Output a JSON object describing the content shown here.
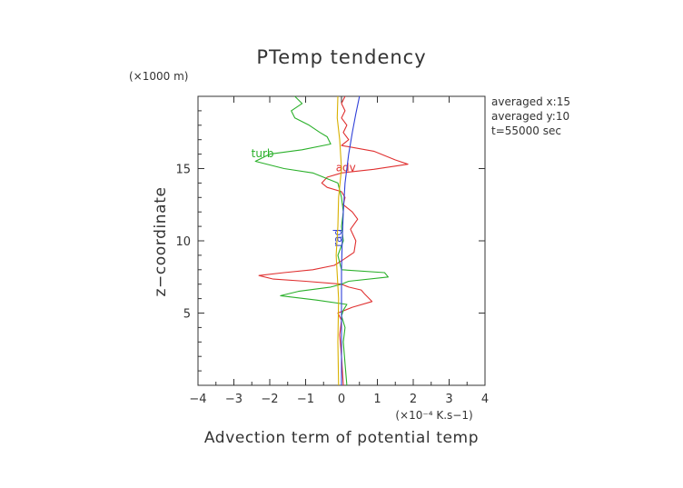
{
  "chart_data": {
    "type": "line",
    "title": "PTemp tendency",
    "xlabel": "Advection term of potential temp",
    "ylabel": "z−coordinate",
    "x_unit": "(×10⁻⁴ K.s−1)",
    "y_unit": "(×1000 m)",
    "xlim": [
      -4,
      4
    ],
    "ylim": [
      0,
      20
    ],
    "x_ticks": [
      -4,
      -3,
      -2,
      -1,
      0,
      1,
      2,
      3,
      4
    ],
    "x_tick_labels": [
      "−4",
      "−3",
      "−2",
      "−1",
      "0",
      "1",
      "2",
      "3",
      "4"
    ],
    "y_ticks": [
      5,
      10,
      15
    ],
    "y_tick_labels": [
      "5",
      "10",
      "15"
    ],
    "grid": false,
    "annotations": [
      "averaged  x:15",
      "averaged  y:10",
      "t=55000 sec"
    ],
    "series": [
      {
        "name": "adv",
        "color": "#e03030",
        "label_at": [
          0.12,
          14.8
        ],
        "points": [
          [
            0.05,
            0.0
          ],
          [
            0.0,
            2.0
          ],
          [
            -0.05,
            3.5
          ],
          [
            0.0,
            4.5
          ],
          [
            -0.1,
            5.0
          ],
          [
            0.3,
            5.4
          ],
          [
            0.85,
            5.8
          ],
          [
            0.65,
            6.3
          ],
          [
            0.55,
            6.6
          ],
          [
            0.2,
            6.8
          ],
          [
            0.0,
            7.0
          ],
          [
            -1.0,
            7.2
          ],
          [
            -1.9,
            7.35
          ],
          [
            -2.3,
            7.6
          ],
          [
            -1.6,
            7.8
          ],
          [
            -0.8,
            8.0
          ],
          [
            -0.2,
            8.3
          ],
          [
            0.05,
            8.7
          ],
          [
            0.35,
            9.2
          ],
          [
            0.4,
            10.0
          ],
          [
            0.25,
            10.8
          ],
          [
            0.45,
            11.5
          ],
          [
            0.3,
            12.0
          ],
          [
            0.05,
            12.5
          ],
          [
            0.1,
            13.0
          ],
          [
            0.0,
            13.4
          ],
          [
            -0.4,
            13.7
          ],
          [
            -0.55,
            14.0
          ],
          [
            -0.4,
            14.4
          ],
          [
            0.0,
            14.7
          ],
          [
            0.9,
            14.95
          ],
          [
            1.85,
            15.3
          ],
          [
            1.5,
            15.6
          ],
          [
            0.9,
            16.2
          ],
          [
            0.0,
            16.6
          ],
          [
            0.2,
            17.0
          ],
          [
            0.05,
            17.5
          ],
          [
            0.15,
            18.0
          ],
          [
            0.0,
            18.5
          ],
          [
            0.1,
            19.0
          ],
          [
            0.0,
            19.5
          ],
          [
            0.1,
            20.0
          ]
        ]
      },
      {
        "name": "turb",
        "color": "#2ab02a",
        "label_at": [
          -2.2,
          15.8
        ],
        "points": [
          [
            0.15,
            0.0
          ],
          [
            0.1,
            1.5
          ],
          [
            0.05,
            3.0
          ],
          [
            0.1,
            4.0
          ],
          [
            0.0,
            4.8
          ],
          [
            0.05,
            5.2
          ],
          [
            0.15,
            5.6
          ],
          [
            -0.7,
            5.9
          ],
          [
            -1.7,
            6.2
          ],
          [
            -1.2,
            6.5
          ],
          [
            -0.3,
            6.8
          ],
          [
            0.0,
            7.0
          ],
          [
            0.2,
            7.2
          ],
          [
            1.3,
            7.5
          ],
          [
            1.2,
            7.8
          ],
          [
            0.0,
            8.0
          ],
          [
            -0.1,
            9.0
          ],
          [
            0.05,
            10.0
          ],
          [
            0.0,
            11.0
          ],
          [
            0.05,
            12.0
          ],
          [
            0.0,
            13.0
          ],
          [
            -0.1,
            14.0
          ],
          [
            -0.8,
            14.7
          ],
          [
            -1.6,
            15.0
          ],
          [
            -2.4,
            15.5
          ],
          [
            -2.0,
            16.0
          ],
          [
            -1.1,
            16.3
          ],
          [
            -0.3,
            16.7
          ],
          [
            -0.4,
            17.2
          ],
          [
            -0.6,
            17.5
          ],
          [
            -0.9,
            18.0
          ],
          [
            -1.3,
            18.5
          ],
          [
            -1.4,
            19.0
          ],
          [
            -1.1,
            19.5
          ],
          [
            -1.3,
            20.0
          ]
        ]
      },
      {
        "name": "rad",
        "color": "#3040d8",
        "label_at": [
          0.0,
          10.2
        ],
        "points": [
          [
            0.0,
            0.0
          ],
          [
            0.0,
            2.0
          ],
          [
            0.0,
            4.0
          ],
          [
            0.0,
            6.0
          ],
          [
            0.0,
            8.0
          ],
          [
            0.02,
            10.0
          ],
          [
            0.05,
            12.0
          ],
          [
            0.1,
            14.0
          ],
          [
            0.2,
            16.0
          ],
          [
            0.3,
            17.5
          ],
          [
            0.4,
            18.8
          ],
          [
            0.5,
            20.0
          ]
        ]
      },
      {
        "name": "",
        "color": "#d8b000",
        "points": [
          [
            -0.08,
            0.0
          ],
          [
            -0.1,
            3.0
          ],
          [
            -0.08,
            6.0
          ],
          [
            -0.15,
            9.0
          ],
          [
            -0.1,
            11.0
          ],
          [
            -0.08,
            13.0
          ],
          [
            0.0,
            15.0
          ],
          [
            -0.05,
            17.0
          ],
          [
            -0.12,
            18.5
          ],
          [
            -0.1,
            20.0
          ]
        ]
      }
    ]
  }
}
